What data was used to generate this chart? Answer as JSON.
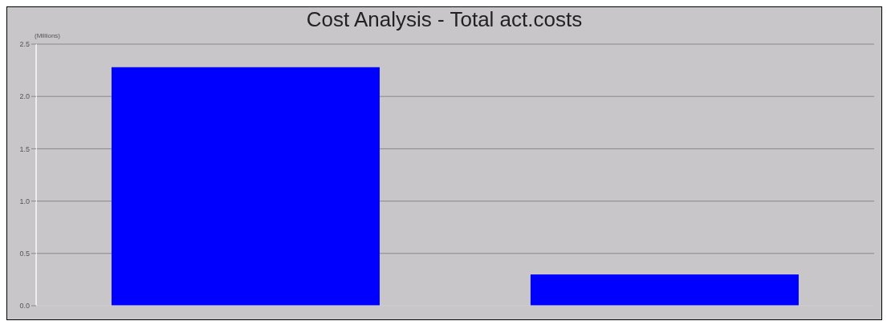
{
  "chart_data": {
    "type": "bar",
    "title": "Cost Analysis - Total act.costs",
    "ylabel": "(Millions)",
    "categories": [
      null,
      null
    ],
    "values": [
      2.28,
      0.3
    ],
    "color": "#0000ff",
    "ylim": [
      0,
      2.5
    ],
    "yticks": [
      {
        "value": 0,
        "label": "0.0"
      },
      {
        "value": 0.5,
        "label": "0.5"
      },
      {
        "value": 1,
        "label": "1.0"
      },
      {
        "value": 1.5,
        "label": "1.5"
      },
      {
        "value": 2,
        "label": "2.0"
      },
      {
        "value": 2.5,
        "label": "2.5"
      }
    ],
    "grid": "y"
  }
}
